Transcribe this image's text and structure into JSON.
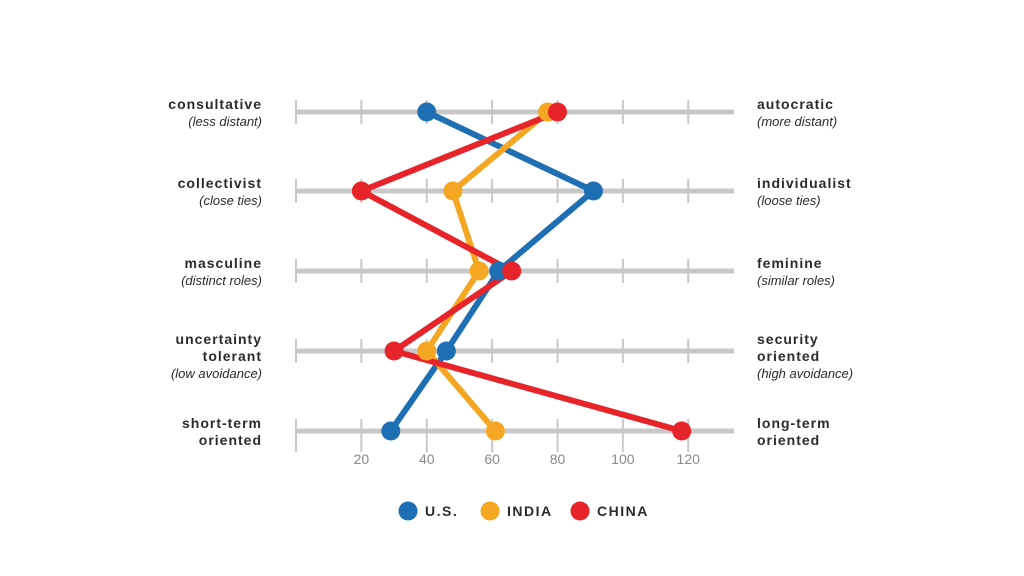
{
  "chart_data": {
    "type": "line",
    "xlim": [
      0,
      134
    ],
    "x_ticks": [
      20,
      40,
      60,
      80,
      100,
      120
    ],
    "x_tick_labels": [
      "20",
      "40",
      "60",
      "80",
      "100",
      "120"
    ],
    "grid": true,
    "legend_position": "bottom-center",
    "dimensions": [
      {
        "left": [
          "consultative",
          "(less distant)"
        ],
        "right": [
          "autocratic",
          "(more distant)"
        ]
      },
      {
        "left": [
          "collectivist",
          "(close ties)"
        ],
        "right": [
          "individualist",
          "(loose ties)"
        ]
      },
      {
        "left": [
          "masculine",
          "(distinct roles)"
        ],
        "right": [
          "feminine",
          "(similar roles)"
        ]
      },
      {
        "left": [
          "uncertainty",
          "tolerant",
          "(low avoidance)"
        ],
        "right": [
          "security",
          "oriented",
          "(high avoidance)"
        ]
      },
      {
        "left": [
          "short-term",
          "oriented"
        ],
        "right": [
          "long-term",
          "oriented"
        ]
      }
    ],
    "series": [
      {
        "name": "U.S.",
        "color": "#1f6fb5",
        "values": [
          40,
          91,
          62,
          46,
          29
        ]
      },
      {
        "name": "INDIA",
        "color": "#f5a623",
        "values": [
          77,
          48,
          56,
          40,
          61
        ]
      },
      {
        "name": "CHINA",
        "color": "#e8242b",
        "values": [
          80,
          20,
          66,
          30,
          118
        ]
      }
    ]
  }
}
